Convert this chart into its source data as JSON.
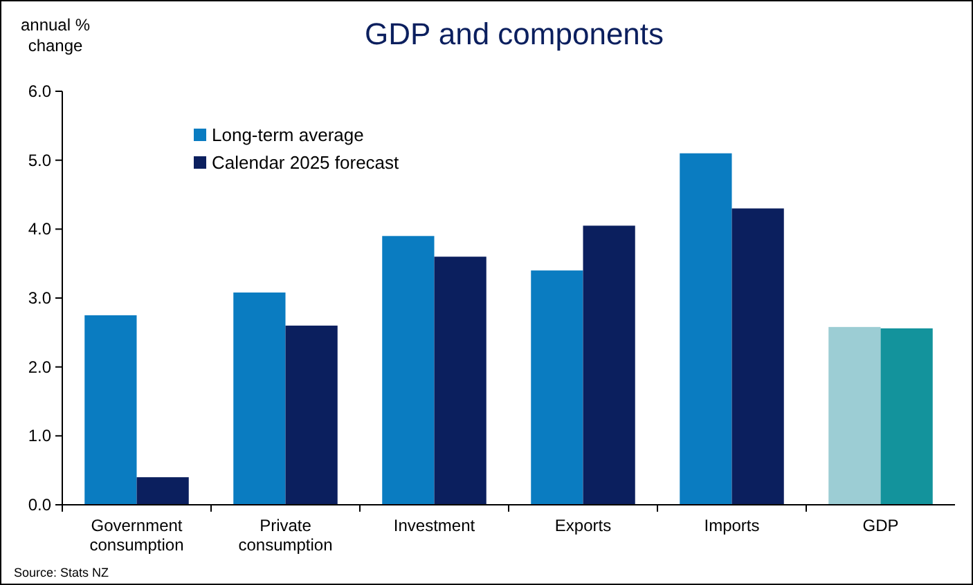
{
  "chart_data": {
    "type": "bar",
    "title": "GDP and components",
    "ylabel": "annual % change",
    "categories": [
      "Government consumption",
      "Private consumption",
      "Investment",
      "Exports",
      "Imports",
      "GDP"
    ],
    "series": [
      {
        "name": "Long-term average",
        "color": "#0a7cc1",
        "colors": [
          "#0a7cc1",
          "#0a7cc1",
          "#0a7cc1",
          "#0a7cc1",
          "#0a7cc1",
          "#9ccdd4"
        ],
        "values": [
          2.75,
          3.08,
          3.9,
          3.4,
          5.1,
          2.58
        ]
      },
      {
        "name": "Calendar 2025 forecast",
        "color": "#0b1f5e",
        "colors": [
          "#0b1f5e",
          "#0b1f5e",
          "#0b1f5e",
          "#0b1f5e",
          "#0b1f5e",
          "#13939c"
        ],
        "values": [
          0.4,
          2.6,
          3.6,
          4.05,
          4.3,
          2.56
        ]
      }
    ],
    "ylim": [
      0,
      6
    ],
    "yticks": [
      {
        "value": 0,
        "label": "0.0"
      },
      {
        "value": 1,
        "label": "1.0"
      },
      {
        "value": 2,
        "label": "2.0"
      },
      {
        "value": 3,
        "label": "3.0"
      },
      {
        "value": 4,
        "label": "4.0"
      },
      {
        "value": 5,
        "label": "5.0"
      },
      {
        "value": 6,
        "label": "6.0"
      }
    ],
    "grid": false,
    "legend": "top left",
    "annotations": [
      "Source: Stats NZ"
    ]
  }
}
